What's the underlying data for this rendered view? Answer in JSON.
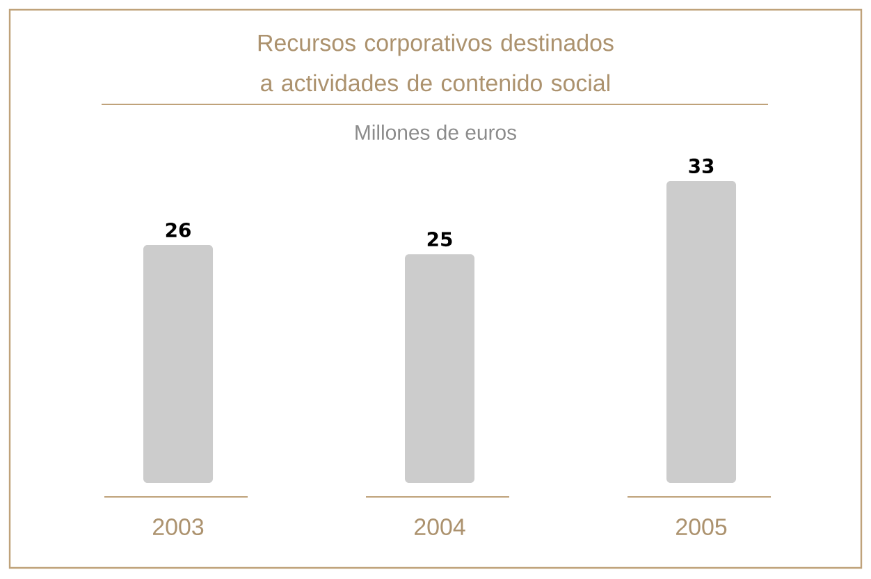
{
  "chart_data": {
    "type": "bar",
    "title": "Recursos corporativos destinados a actividades de contenido social",
    "subtitle": "Millones de euros",
    "categories": [
      "2003",
      "2004",
      "2005"
    ],
    "values": [
      26,
      25,
      33
    ],
    "color": "#cccccc",
    "data_labels": true
  }
}
